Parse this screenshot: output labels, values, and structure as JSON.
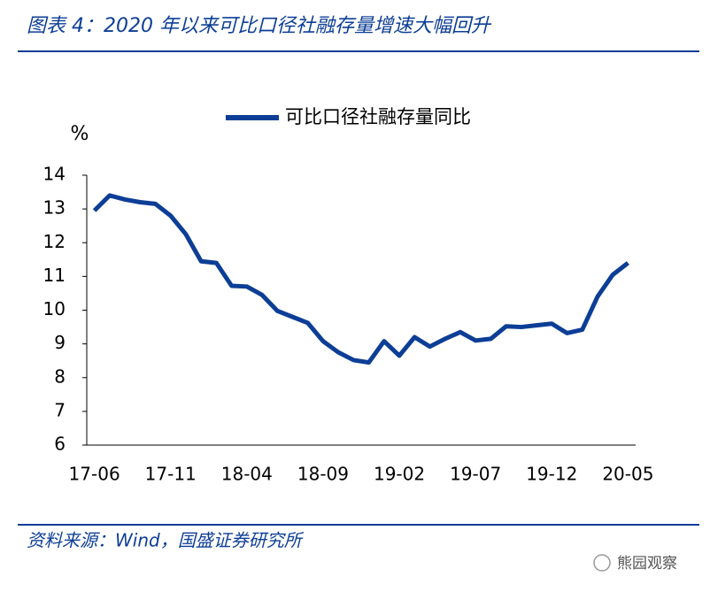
{
  "header": {
    "title": "图表 4：2020 年以来可比口径社融存量增速大幅回升"
  },
  "footer": {
    "source": "资料来源：Wind，国盛证券研究所",
    "watermark": "熊园观察"
  },
  "chart_data": {
    "type": "line",
    "y_unit": "%",
    "categories": [
      "17-06",
      null,
      null,
      null,
      null,
      "17-11",
      null,
      null,
      null,
      null,
      "18-04",
      null,
      null,
      null,
      null,
      "18-09",
      null,
      null,
      null,
      null,
      "19-02",
      null,
      null,
      null,
      null,
      "19-07",
      null,
      null,
      null,
      null,
      "19-12",
      null,
      null,
      null,
      null,
      "20-05"
    ],
    "series": [
      {
        "name": "可比口径社融存量同比",
        "color": "#0d3e96",
        "values": [
          12.95,
          13.4,
          13.28,
          13.2,
          13.15,
          12.8,
          12.25,
          11.45,
          11.4,
          10.72,
          10.7,
          10.45,
          9.98,
          9.8,
          9.62,
          9.08,
          8.75,
          8.52,
          8.45,
          9.08,
          8.65,
          9.2,
          8.92,
          9.15,
          9.35,
          9.1,
          9.15,
          9.52,
          9.5,
          9.55,
          9.6,
          9.32,
          9.42,
          10.4,
          11.05,
          11.4
        ]
      }
    ],
    "ylim": [
      6,
      14
    ],
    "yticks": [
      6,
      7,
      8,
      9,
      10,
      11,
      12,
      13,
      14
    ],
    "legend": "top"
  }
}
